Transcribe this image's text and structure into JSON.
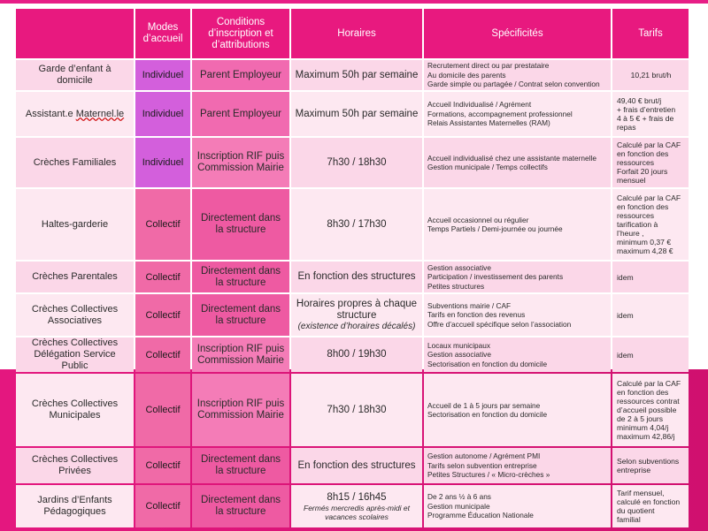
{
  "headers": {
    "type": "",
    "modes": "Modes d’accueil",
    "conditions": "Conditions d’inscription et d’attributions",
    "horaires": "Horaires",
    "specificites": "Spécificités",
    "tarifs": "Tarifs"
  },
  "rows": [
    {
      "type": "Garde d’enfant à domicile",
      "mode": "Individuel",
      "conditions": "Parent Employeur",
      "horaires": "Maximum 50h par semaine",
      "horaires_note": "",
      "specificites": [
        "Recrutement direct ou par prestataire",
        "Au domicile des parents",
        "Garde simple ou partagée /  Contrat selon convention"
      ],
      "tarifs": [
        "10,21 brut/h"
      ]
    },
    {
      "type": "Assistant.e Maternel.le",
      "mode": "Individuel",
      "conditions": "Parent Employeur",
      "horaires": "Maximum 50h par semaine",
      "horaires_note": "",
      "specificites": [
        "Accueil Individualisé / Agrément",
        "Formations, accompagnement professionnel",
        "Relais Assistantes Maternelles (RAM)"
      ],
      "tarifs": [
        "49,40 € brut/j",
        "+ frais d’entretien",
        "4 à 5 € + frais de",
        "repas"
      ]
    },
    {
      "type": "Crèches Familiales",
      "mode": "Individuel",
      "conditions": "Inscription RIF puis Commission Mairie",
      "horaires": "7h30 / 18h30",
      "horaires_note": "",
      "specificites": [
        "Accueil individualisé chez une assistante maternelle",
        "Gestion municipale / Temps collectifs"
      ],
      "tarifs": [
        "Calculé par la CAF",
        "en fonction des",
        "ressources",
        "Forfait 20 jours",
        "mensuel"
      ]
    },
    {
      "type": "Haltes-garderie",
      "mode": "Collectif",
      "conditions": "Directement dans la structure",
      "horaires": "8h30 / 17h30",
      "horaires_note": "",
      "specificites": [
        "Accueil occasionnel ou régulier",
        "Temps Partiels / Demi-journée ou journée"
      ],
      "tarifs": [
        "Calculé par la CAF",
        "en fonction des",
        "ressources",
        "tarification à",
        "l’heure  ,",
        "minimum  0,37 €",
        "maximum 4,28 €"
      ]
    },
    {
      "type": "Crèches Parentales",
      "mode": "Collectif",
      "conditions": "Directement dans la structure",
      "horaires": "En fonction des structures",
      "horaires_note": "",
      "specificites": [
        "Gestion associative",
        "Participation / investissement des parents",
        "Petites structures"
      ],
      "tarifs": [
        "idem"
      ]
    },
    {
      "type": "Crèches Collectives Associatives",
      "mode": "Collectif",
      "conditions": "Directement dans la structure",
      "horaires": "Horaires propres à chaque structure",
      "horaires_note": "(existence d’horaires  décalés)",
      "specificites": [
        "Subventions mairie / CAF",
        "Tarifs en fonction des revenus",
        "Offre d’accueil spécifique selon l’association"
      ],
      "tarifs": [
        "idem"
      ]
    },
    {
      "type": "Crèches Collectives Délégation Service Public",
      "mode": "Collectif",
      "conditions": "Inscription RIF puis Commission Mairie",
      "horaires": "8h00 / 19h30",
      "horaires_note": "",
      "specificites": [
        "Locaux municipaux",
        "Gestion associative",
        "Sectorisation en fonction du domicile"
      ],
      "tarifs": [
        "idem"
      ]
    },
    {
      "type": "Crèches Collectives Municipales",
      "mode": "Collectif",
      "conditions": "Inscription RIF puis Commission Mairie",
      "horaires": "7h30 / 18h30",
      "horaires_note": "",
      "specificites": [
        "Accueil de 1 à 5 jours par semaine",
        "Sectorisation en fonction du domicile"
      ],
      "tarifs": [
        "Calculé par la CAF",
        "en fonction des",
        "ressources contrat",
        "d’accueil possible",
        "de 2 à 5 jours",
        "minimum  4,04/j",
        "maximum 42,86/j"
      ]
    },
    {
      "type": "Crèches Collectives Privées",
      "mode": "Collectif",
      "conditions": "Directement dans la structure",
      "horaires": "En fonction des structures",
      "horaires_note": "",
      "specificites": [
        "Gestion autonome / Agrément PMI",
        "Tarifs selon subvention entreprise",
        "Petites Structures / « Micro-crèches »"
      ],
      "tarifs": [
        "Selon subventions",
        "entreprise"
      ]
    },
    {
      "type": "Jardins d’Enfants Pédagogiques",
      "mode": "Collectif",
      "conditions": "Directement dans la structure",
      "horaires": "8h15 / 16h45",
      "horaires_note": "Fermés mercredis après-midi et vacances scolaires",
      "specificites": [
        "De 2 ans ½ à 6 ans",
        "Gestion municipale",
        "Programme Éducation Nationale"
      ],
      "tarifs": [
        "Tarif mensuel,",
        "calculé en fonction",
        "du quotient",
        "familial"
      ]
    }
  ]
}
